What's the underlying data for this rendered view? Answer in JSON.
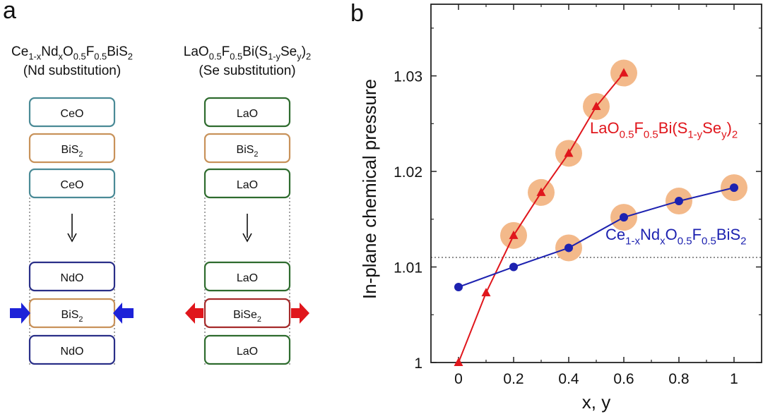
{
  "panel_a": {
    "label": "a",
    "left": {
      "formula": {
        "parts": [
          {
            "t": "Ce"
          },
          {
            "t": "1-x",
            "s": "sub"
          },
          {
            "t": "Nd"
          },
          {
            "t": "x",
            "s": "sub"
          },
          {
            "t": "O"
          },
          {
            "t": "0.5",
            "s": "sub"
          },
          {
            "t": "F"
          },
          {
            "t": "0.5",
            "s": "sub"
          },
          {
            "t": "BiS"
          },
          {
            "t": "2",
            "s": "sub"
          }
        ]
      },
      "subtitle": "(Nd substitution)",
      "top_layers": [
        {
          "parts": [
            {
              "t": "CeO"
            }
          ],
          "color": "#4a8a96"
        },
        {
          "parts": [
            {
              "t": "BiS"
            },
            {
              "t": "2",
              "s": "sub"
            }
          ],
          "color": "#c8925a"
        },
        {
          "parts": [
            {
              "t": "CeO"
            }
          ],
          "color": "#4a8a96"
        }
      ],
      "bottom_layers": [
        {
          "parts": [
            {
              "t": "NdO"
            }
          ],
          "color": "#2a2f88"
        },
        {
          "parts": [
            {
              "t": "BiS"
            },
            {
              "t": "2",
              "s": "sub"
            }
          ],
          "color": "#c8925a"
        },
        {
          "parts": [
            {
              "t": "NdO"
            }
          ],
          "color": "#2a2f88"
        }
      ],
      "arrow_color": "#1d22d8",
      "arrow_direction": "inward"
    },
    "right": {
      "formula": {
        "parts": [
          {
            "t": "LaO"
          },
          {
            "t": "0.5",
            "s": "sub"
          },
          {
            "t": "F"
          },
          {
            "t": "0.5",
            "s": "sub"
          },
          {
            "t": "Bi(S"
          },
          {
            "t": "1-y",
            "s": "sub"
          },
          {
            "t": "Se"
          },
          {
            "t": "y",
            "s": "sub"
          },
          {
            "t": ")"
          },
          {
            "t": "2",
            "s": "sub"
          }
        ]
      },
      "subtitle": "(Se substitution)",
      "top_layers": [
        {
          "parts": [
            {
              "t": "LaO"
            }
          ],
          "color": "#2e6b2e"
        },
        {
          "parts": [
            {
              "t": "BiS"
            },
            {
              "t": "2",
              "s": "sub"
            }
          ],
          "color": "#c8925a"
        },
        {
          "parts": [
            {
              "t": "LaO"
            }
          ],
          "color": "#2e6b2e"
        }
      ],
      "bottom_layers": [
        {
          "parts": [
            {
              "t": "LaO"
            }
          ],
          "color": "#2e6b2e"
        },
        {
          "parts": [
            {
              "t": "BiSe"
            },
            {
              "t": "2",
              "s": "sub"
            }
          ],
          "color": "#a52a2a"
        },
        {
          "parts": [
            {
              "t": "LaO"
            }
          ],
          "color": "#2e6b2e"
        }
      ],
      "arrow_color": "#e0161c",
      "arrow_direction": "outward"
    }
  },
  "chart_data": {
    "panel_label": "b",
    "type": "line",
    "xlabel": "x, y",
    "ylabel": "In-plane chemical pressure",
    "xlim": [
      -0.1,
      1.1
    ],
    "ylim": [
      1.0,
      1.0375
    ],
    "xticks": [
      0,
      0.2,
      0.4,
      0.6,
      0.8,
      1
    ],
    "xtick_labels": [
      "0",
      "0.2",
      "0.4",
      "0.6",
      "0.8",
      "1"
    ],
    "yticks": [
      1.0,
      1.01,
      1.02,
      1.03
    ],
    "ytick_labels": [
      "1",
      "1.01",
      "1.02",
      "1.03"
    ],
    "reference_line": {
      "y": 1.011,
      "style": "dotted"
    },
    "grid": false,
    "highlight_color": "#f3b98a",
    "series": [
      {
        "label_parts": [
          {
            "t": "LaO"
          },
          {
            "t": "0.5",
            "s": "sub"
          },
          {
            "t": "F"
          },
          {
            "t": "0.5",
            "s": "sub"
          },
          {
            "t": "Bi(S"
          },
          {
            "t": "1-y",
            "s": "sub"
          },
          {
            "t": "Se"
          },
          {
            "t": "y",
            "s": "sub"
          },
          {
            "t": ")"
          },
          {
            "t": "2",
            "s": "sub"
          }
        ],
        "color": "#e0161c",
        "marker": "triangle",
        "x": [
          0,
          0.1,
          0.2,
          0.3,
          0.4,
          0.5,
          0.6
        ],
        "y": [
          1.0,
          1.0073,
          1.0133,
          1.0178,
          1.0219,
          1.0268,
          1.0303
        ],
        "highlighted": [
          false,
          false,
          true,
          true,
          true,
          true,
          true
        ]
      },
      {
        "label_parts": [
          {
            "t": "Ce"
          },
          {
            "t": "1-x",
            "s": "sub"
          },
          {
            "t": "Nd"
          },
          {
            "t": "x",
            "s": "sub"
          },
          {
            "t": "O"
          },
          {
            "t": "0.5",
            "s": "sub"
          },
          {
            "t": "F"
          },
          {
            "t": "0.5",
            "s": "sub"
          },
          {
            "t": "BiS"
          },
          {
            "t": "2",
            "s": "sub"
          }
        ],
        "color": "#1d22b0",
        "marker": "circle",
        "x": [
          0,
          0.2,
          0.4,
          0.6,
          0.8,
          1.0
        ],
        "y": [
          1.0079,
          1.01,
          1.012,
          1.0152,
          1.0169,
          1.0183
        ],
        "highlighted": [
          false,
          false,
          true,
          true,
          true,
          true
        ]
      }
    ]
  }
}
